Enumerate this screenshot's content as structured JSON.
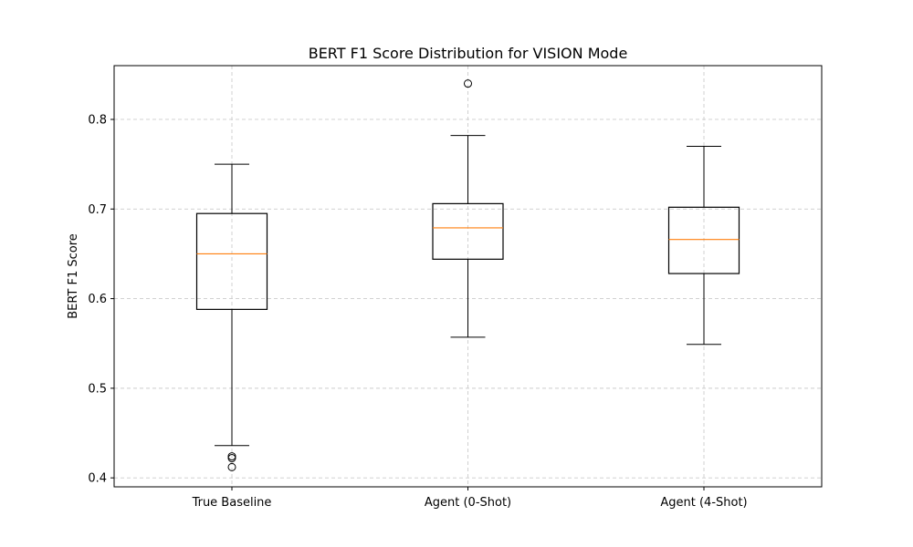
{
  "chart_data": {
    "type": "box",
    "title": "BERT F1 Score Distribution for VISION Mode",
    "xlabel": "",
    "ylabel": "BERT F1 Score",
    "ylim": [
      0.39,
      0.86
    ],
    "yticks": [
      "0.4",
      "0.5",
      "0.6",
      "0.7",
      "0.8"
    ],
    "ytick_values": [
      0.4,
      0.5,
      0.6,
      0.7,
      0.8
    ],
    "grid": true,
    "colors": {
      "box": "#000000",
      "median": "#ff7f0e",
      "grid": "#cccccc"
    },
    "categories": [
      "True Baseline",
      "Agent (0-Shot)",
      "Agent (4-Shot)"
    ],
    "boxes": [
      {
        "whisker_low": 0.436,
        "q1": 0.588,
        "median": 0.65,
        "q3": 0.695,
        "whisker_high": 0.75,
        "outliers": [
          0.424,
          0.422,
          0.412
        ]
      },
      {
        "whisker_low": 0.557,
        "q1": 0.644,
        "median": 0.679,
        "q3": 0.706,
        "whisker_high": 0.782,
        "outliers": [
          0.84
        ]
      },
      {
        "whisker_low": 0.549,
        "q1": 0.628,
        "median": 0.666,
        "q3": 0.702,
        "whisker_high": 0.77,
        "outliers": []
      }
    ]
  }
}
